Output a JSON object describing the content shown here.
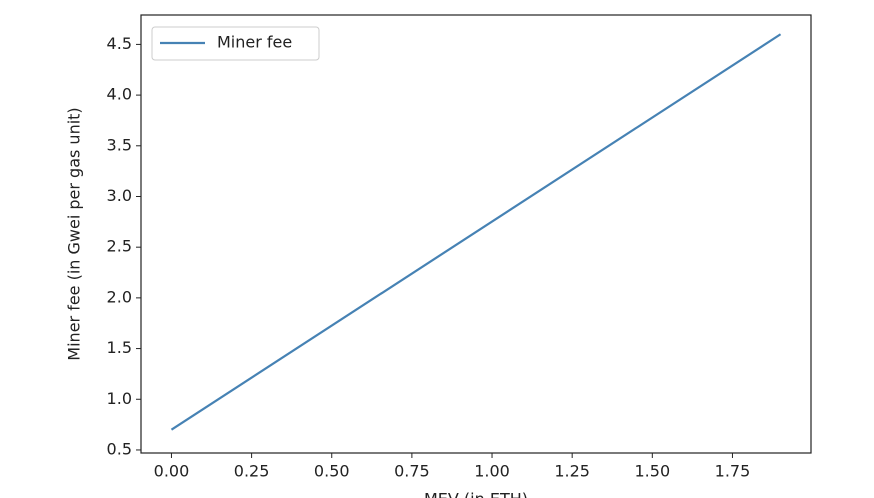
{
  "chart_data": {
    "type": "line",
    "x_label": "MEV (in ETH)",
    "y_label": "Miner fee (in Gwei per gas unit)",
    "x": [
      0,
      1.9
    ],
    "series": [
      {
        "name": "Miner fee",
        "color": "#4682b4",
        "values": [
          0.7,
          4.6
        ]
      }
    ],
    "xlim": [
      -0.095,
      1.995
    ],
    "ylim": [
      0.47,
      4.79
    ],
    "xticks": [
      {
        "value": 0,
        "label": "0.00"
      },
      0.25,
      {
        "value": 0.5,
        "label": "0.50"
      },
      0.75,
      {
        "value": 1,
        "label": "1.00"
      },
      1.25,
      {
        "value": 1.5,
        "label": "1.50"
      },
      1.75
    ],
    "yticks": [
      0.5,
      {
        "value": 1,
        "label": "1.0"
      },
      1.5,
      {
        "value": 2,
        "label": "2.0"
      },
      2.5,
      {
        "value": 3,
        "label": "3.0"
      },
      3.5,
      {
        "value": 4,
        "label": "4.0"
      },
      4.5
    ],
    "legend": "upper left"
  }
}
